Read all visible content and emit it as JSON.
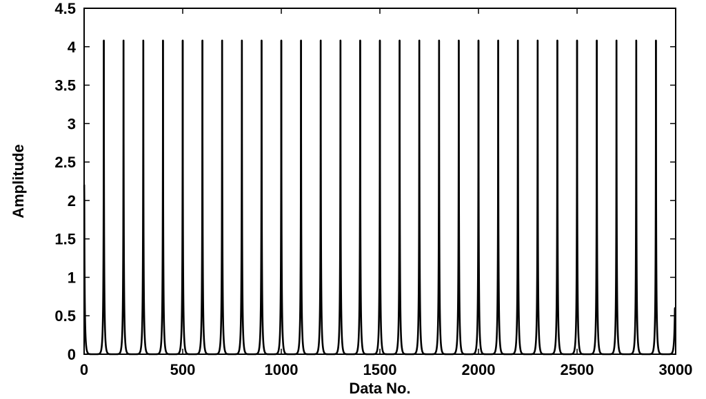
{
  "chart_data": {
    "type": "line",
    "title": "",
    "xlabel": "Data No.",
    "ylabel": "Amplitude",
    "xlim": [
      0,
      3000
    ],
    "ylim": [
      0,
      4.5
    ],
    "xticks": [
      "0",
      "500",
      "1000",
      "1500",
      "2000",
      "2500",
      "3000"
    ],
    "yticks": [
      "0",
      "0.5",
      "1",
      "1.5",
      "2",
      "2.5",
      "3",
      "3.5",
      "4",
      "4.5"
    ],
    "grid": false,
    "series": [
      {
        "color": "#000000",
        "period": 100,
        "peak_value": 4.08,
        "first_peak_x": 100,
        "peak_x": [
          100,
          200,
          300,
          400,
          500,
          600,
          700,
          800,
          900,
          1000,
          1100,
          1200,
          1300,
          1400,
          1500,
          1600,
          1700,
          1800,
          1900,
          2000,
          2100,
          2200,
          2300,
          2400,
          2500,
          2600,
          2700,
          2800,
          2900
        ],
        "trough_value": 0.0
      }
    ]
  }
}
